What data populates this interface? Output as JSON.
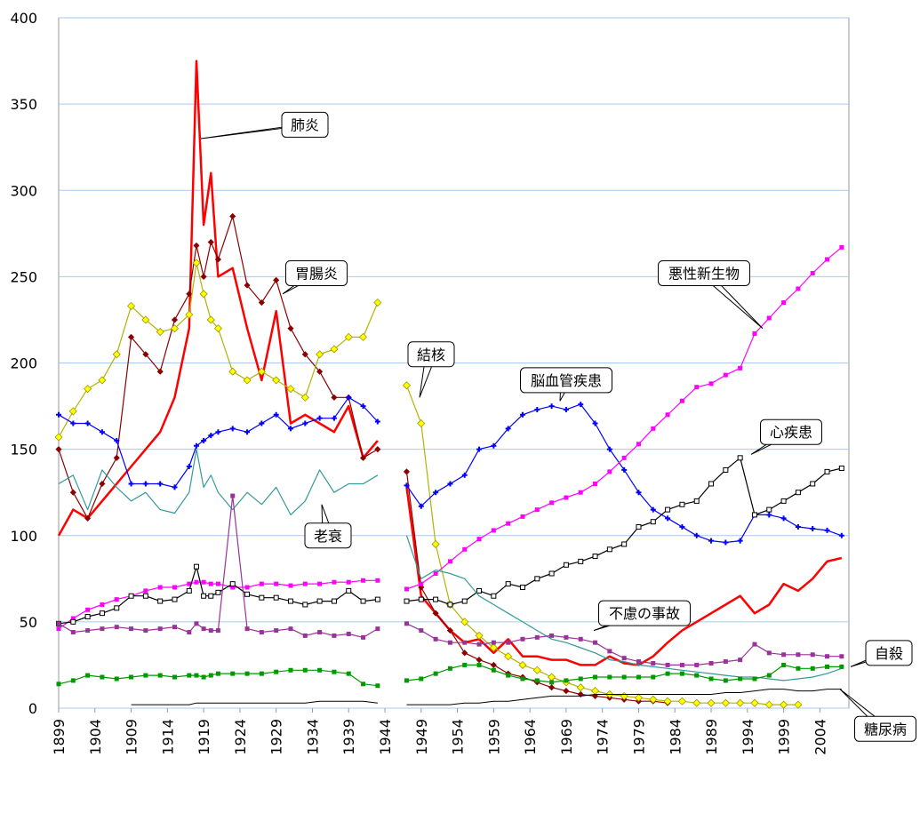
{
  "chart_data": {
    "type": "line",
    "x": [
      1899,
      1901,
      1903,
      1905,
      1907,
      1909,
      1911,
      1913,
      1915,
      1917,
      1918,
      1919,
      1920,
      1921,
      1923,
      1925,
      1927,
      1929,
      1931,
      1933,
      1935,
      1937,
      1939,
      1941,
      1943,
      1945,
      1947,
      1949,
      1951,
      1953,
      1955,
      1957,
      1959,
      1961,
      1963,
      1965,
      1967,
      1969,
      1971,
      1973,
      1975,
      1977,
      1979,
      1981,
      1983,
      1985,
      1987,
      1989,
      1991,
      1993,
      1995,
      1997,
      1999,
      2001,
      2003,
      2005,
      2007
    ],
    "xlim": [
      1899,
      2008
    ],
    "xticks": [
      1899,
      1904,
      1909,
      1914,
      1919,
      1924,
      1929,
      1934,
      1939,
      1944,
      1949,
      1954,
      1959,
      1964,
      1969,
      1974,
      1979,
      1984,
      1989,
      1994,
      1999,
      2004
    ],
    "ylim": [
      0,
      400
    ],
    "yticks": [
      0,
      50,
      100,
      150,
      200,
      250,
      300,
      350,
      400
    ],
    "grid": true,
    "series": [
      {
        "name": "肺炎",
        "color": "#ff0000",
        "marker": "none",
        "width": 2.5,
        "values": [
          100,
          115,
          110,
          120,
          130,
          140,
          150,
          160,
          180,
          220,
          375,
          280,
          310,
          250,
          255,
          220,
          190,
          230,
          165,
          170,
          165,
          160,
          175,
          145,
          155,
          null,
          128,
          65,
          55,
          45,
          38,
          40,
          32,
          40,
          30,
          30,
          28,
          28,
          25,
          25,
          30,
          26,
          25,
          30,
          38,
          45,
          50,
          55,
          60,
          65,
          55,
          60,
          72,
          68,
          75,
          85,
          87
        ]
      },
      {
        "name": "胃腸炎",
        "color": "#8b0000",
        "marker": "diamond",
        "width": 1.2,
        "values": [
          150,
          125,
          110,
          130,
          145,
          215,
          205,
          195,
          225,
          240,
          268,
          250,
          270,
          260,
          285,
          245,
          235,
          248,
          220,
          205,
          195,
          180,
          180,
          145,
          150,
          null,
          137,
          70,
          55,
          45,
          32,
          28,
          25,
          20,
          18,
          15,
          12,
          10,
          8,
          7,
          6,
          5,
          4,
          4,
          3,
          null,
          null,
          null,
          null,
          null,
          null,
          null,
          null,
          null,
          null,
          null,
          null
        ]
      },
      {
        "name": "結核",
        "color": "#b3b300",
        "marker": "yellow-diamond",
        "width": 1.2,
        "values": [
          157,
          172,
          185,
          190,
          205,
          233,
          225,
          218,
          220,
          228,
          258,
          240,
          225,
          220,
          195,
          190,
          195,
          190,
          185,
          180,
          205,
          208,
          215,
          215,
          235,
          null,
          187,
          165,
          95,
          60,
          50,
          42,
          35,
          30,
          25,
          22,
          18,
          15,
          12,
          10,
          8,
          7,
          6,
          5,
          4,
          4,
          3,
          3,
          3,
          3,
          3,
          2,
          2,
          2,
          null,
          null,
          null
        ]
      },
      {
        "name": "脳血管疾患",
        "color": "#0000ff",
        "marker": "cross",
        "width": 1.2,
        "values": [
          170,
          165,
          165,
          160,
          155,
          130,
          130,
          130,
          128,
          140,
          152,
          155,
          158,
          160,
          162,
          160,
          165,
          170,
          162,
          165,
          168,
          168,
          180,
          175,
          166,
          null,
          129,
          117,
          125,
          130,
          135,
          150,
          152,
          162,
          170,
          173,
          175,
          173,
          176,
          165,
          150,
          138,
          125,
          115,
          110,
          105,
          100,
          97,
          96,
          97,
          112,
          112,
          110,
          105,
          104,
          103,
          100
        ]
      },
      {
        "name": "悪性新生物",
        "color": "#ff00ff",
        "marker": "square",
        "width": 1.2,
        "values": [
          46,
          52,
          57,
          60,
          63,
          65,
          68,
          70,
          70,
          72,
          73,
          73,
          72,
          72,
          70,
          70,
          72,
          72,
          71,
          72,
          72,
          73,
          73,
          74,
          74,
          null,
          69,
          72,
          78,
          85,
          92,
          98,
          103,
          107,
          111,
          115,
          119,
          122,
          125,
          130,
          137,
          145,
          153,
          162,
          170,
          178,
          186,
          188,
          193,
          197,
          217,
          226,
          235,
          243,
          252,
          260,
          267
        ]
      },
      {
        "name": "心疾患",
        "color": "#000000",
        "marker": "open-square",
        "width": 1.2,
        "values": [
          49,
          50,
          53,
          55,
          58,
          65,
          65,
          62,
          63,
          68,
          82,
          65,
          65,
          67,
          72,
          66,
          64,
          64,
          62,
          60,
          62,
          62,
          68,
          62,
          63,
          null,
          62,
          63,
          63,
          60,
          62,
          68,
          65,
          72,
          70,
          75,
          78,
          83,
          85,
          88,
          92,
          95,
          105,
          108,
          115,
          118,
          120,
          130,
          138,
          145,
          112,
          115,
          120,
          125,
          130,
          137,
          139
        ]
      },
      {
        "name": "老衰",
        "color": "#339999",
        "marker": "none",
        "width": 1.2,
        "values": [
          130,
          135,
          115,
          138,
          128,
          120,
          125,
          115,
          113,
          125,
          150,
          128,
          135,
          125,
          115,
          125,
          118,
          128,
          112,
          120,
          138,
          125,
          130,
          130,
          135,
          null,
          100,
          75,
          80,
          78,
          75,
          65,
          60,
          55,
          50,
          45,
          40,
          38,
          35,
          32,
          28,
          27,
          25,
          24,
          23,
          22,
          21,
          20,
          19,
          18,
          18,
          17,
          16,
          17,
          18,
          20,
          23
        ]
      },
      {
        "name": "不慮の事故",
        "color": "#993399",
        "marker": "square",
        "width": 1.2,
        "values": [
          49,
          44,
          45,
          46,
          47,
          46,
          45,
          46,
          47,
          44,
          49,
          46,
          45,
          45,
          123,
          46,
          44,
          45,
          46,
          42,
          44,
          42,
          43,
          41,
          46,
          null,
          49,
          45,
          40,
          38,
          38,
          37,
          38,
          38,
          40,
          41,
          42,
          41,
          40,
          38,
          33,
          29,
          27,
          26,
          25,
          25,
          25,
          26,
          27,
          28,
          37,
          32,
          31,
          31,
          31,
          30,
          30
        ]
      },
      {
        "name": "自殺",
        "color": "#009900",
        "marker": "square",
        "width": 1.2,
        "values": [
          14,
          16,
          19,
          18,
          17,
          18,
          19,
          19,
          18,
          19,
          19,
          18,
          19,
          20,
          20,
          20,
          20,
          21,
          22,
          22,
          22,
          21,
          20,
          14,
          13,
          null,
          16,
          17,
          20,
          23,
          25,
          25,
          22,
          19,
          17,
          16,
          15,
          16,
          17,
          18,
          18,
          18,
          18,
          18,
          20,
          20,
          19,
          17,
          16,
          17,
          17,
          19,
          25,
          23,
          23,
          24,
          24
        ]
      },
      {
        "name": "糖尿病",
        "color": "#000000",
        "marker": "none",
        "width": 1,
        "values": [
          null,
          null,
          null,
          null,
          null,
          2,
          2,
          2,
          2,
          2,
          3,
          3,
          3,
          3,
          3,
          3,
          3,
          3,
          3,
          3,
          4,
          4,
          4,
          4,
          3,
          null,
          2,
          2,
          2,
          2,
          3,
          3,
          4,
          4,
          5,
          6,
          7,
          7,
          7,
          8,
          8,
          8,
          8,
          8,
          8,
          8,
          8,
          8,
          9,
          9,
          10,
          11,
          11,
          10,
          10,
          11,
          11
        ]
      }
    ]
  }
}
